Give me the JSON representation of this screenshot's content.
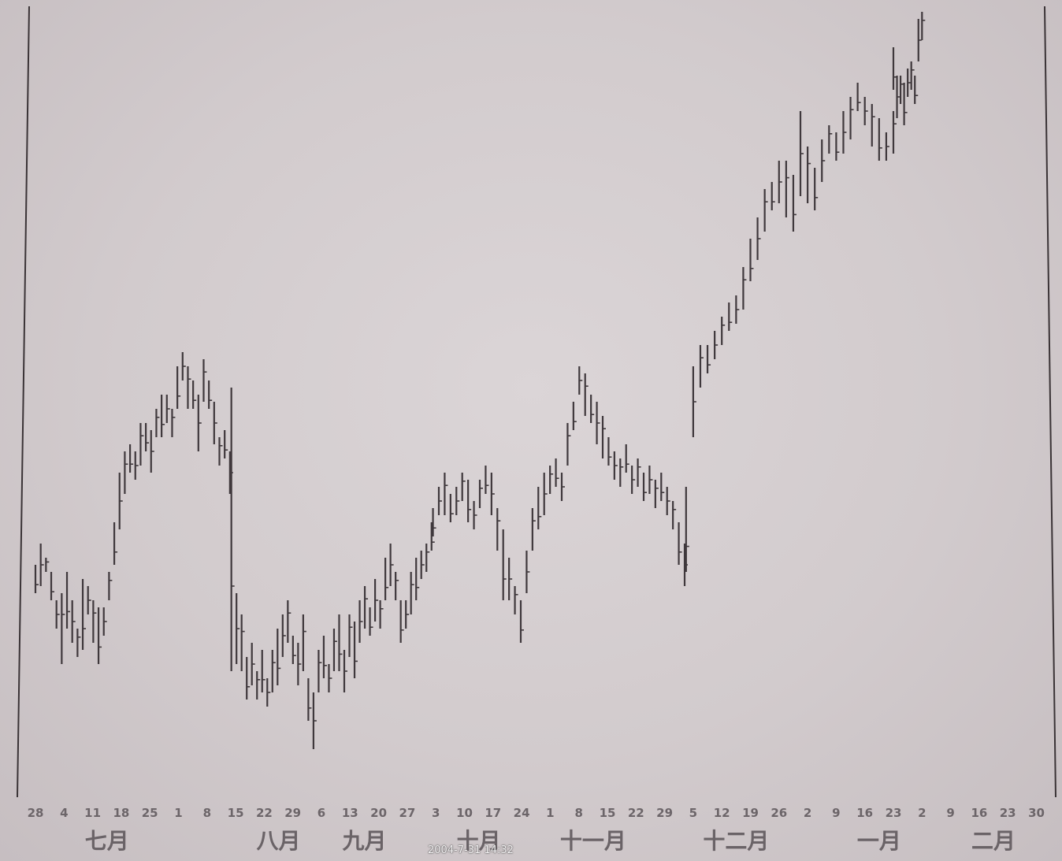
{
  "timestamp": "2004-7-31  14:32",
  "chart_data": {
    "type": "ohlc-bar",
    "title": "",
    "xlabel": "",
    "ylabel": "",
    "grid": false,
    "legend": "none",
    "date_ticks": [
      "28",
      "4",
      "11",
      "18",
      "25",
      "1",
      "8",
      "15",
      "22",
      "29",
      "6",
      "13",
      "20",
      "27",
      "3",
      "10",
      "17",
      "24",
      "1",
      "8",
      "15",
      "22",
      "29",
      "5",
      "12",
      "19",
      "26",
      "2",
      "9",
      "16",
      "23",
      "2",
      "9",
      "16",
      "23",
      "30"
    ],
    "months": [
      "七月",
      "八月",
      "九月",
      "十月",
      "十一月",
      "十二月",
      "一月",
      "二月"
    ],
    "month_tick_index": [
      2.5,
      8.5,
      11.5,
      15.5,
      19.5,
      24.5,
      29.5,
      33.5
    ],
    "price_range": [
      0,
      100
    ],
    "series": [
      {
        "values": [
          [
            25,
            2
          ],
          [
            27,
            3
          ],
          [
            27,
            1
          ],
          [
            24,
            2
          ],
          [
            20,
            2
          ],
          [
            18,
            5
          ],
          [
            22,
            4
          ],
          [
            19,
            3
          ],
          [
            16,
            2
          ],
          [
            20,
            5
          ],
          [
            22,
            2
          ],
          [
            19,
            3
          ],
          [
            17,
            4
          ],
          [
            19,
            2
          ],
          [
            24,
            2
          ],
          [
            30,
            3
          ],
          [
            36,
            4
          ],
          [
            40,
            3
          ],
          [
            42,
            2
          ],
          [
            41,
            2
          ],
          [
            44,
            3
          ],
          [
            45,
            2
          ],
          [
            43,
            3
          ],
          [
            47,
            2
          ],
          [
            48,
            3
          ],
          [
            49,
            2
          ],
          [
            47,
            2
          ],
          [
            52,
            3
          ],
          [
            55,
            2
          ],
          [
            52,
            3
          ],
          [
            51,
            2
          ],
          [
            47,
            4
          ],
          [
            53,
            3
          ],
          [
            51,
            2
          ],
          [
            47,
            3
          ],
          [
            43,
            2
          ],
          [
            44,
            2
          ],
          [
            40,
            3
          ]
        ]
      },
      {
        "values": [
          [
            32,
            20
          ],
          [
            18,
            5
          ],
          [
            16,
            4
          ],
          [
            11,
            3
          ],
          [
            13,
            3
          ],
          [
            10,
            2
          ],
          [
            12,
            3
          ],
          [
            9,
            2
          ],
          [
            12,
            3
          ],
          [
            14,
            4
          ],
          [
            17,
            3
          ],
          [
            19,
            3
          ],
          [
            15,
            2
          ],
          [
            13,
            3
          ],
          [
            16,
            4
          ],
          [
            8,
            3
          ],
          [
            5,
            4
          ],
          [
            12,
            3
          ],
          [
            14,
            3
          ],
          [
            11,
            2
          ],
          [
            15,
            3
          ],
          [
            16,
            4
          ],
          [
            12,
            3
          ],
          [
            17,
            3
          ],
          [
            15,
            4
          ],
          [
            19,
            3
          ],
          [
            21,
            3
          ],
          [
            19,
            2
          ],
          [
            22,
            3
          ],
          [
            20,
            2
          ],
          [
            25,
            3
          ],
          [
            27,
            3
          ],
          [
            24,
            2
          ],
          [
            19,
            3
          ],
          [
            20,
            2
          ],
          [
            23,
            3
          ],
          [
            25,
            3
          ],
          [
            27,
            2
          ],
          [
            28,
            2
          ],
          [
            31,
            2
          ]
        ]
      },
      {
        "values": [
          [
            33,
            2
          ],
          [
            36,
            2
          ],
          [
            37,
            3
          ],
          [
            35,
            2
          ],
          [
            36,
            2
          ],
          [
            38,
            2
          ],
          [
            36,
            3
          ],
          [
            34,
            2
          ],
          [
            37,
            2
          ],
          [
            39,
            2
          ],
          [
            37,
            3
          ],
          [
            32,
            3
          ],
          [
            27,
            5
          ],
          [
            25,
            3
          ],
          [
            22,
            2
          ],
          [
            19,
            3
          ],
          [
            26,
            3
          ],
          [
            32,
            3
          ],
          [
            35,
            3
          ],
          [
            37,
            3
          ],
          [
            39,
            2
          ],
          [
            40,
            2
          ],
          [
            38,
            2
          ],
          [
            44,
            3
          ],
          [
            48,
            2
          ],
          [
            53,
            2
          ],
          [
            51,
            3
          ],
          [
            49,
            2
          ],
          [
            47,
            3
          ],
          [
            45,
            3
          ],
          [
            43,
            2
          ],
          [
            41,
            2
          ],
          [
            40,
            2
          ],
          [
            42,
            2
          ],
          [
            39,
            2
          ],
          [
            40,
            2
          ],
          [
            38,
            2
          ],
          [
            39,
            2
          ],
          [
            37,
            2
          ],
          [
            38,
            2
          ],
          [
            36,
            2
          ],
          [
            34,
            2
          ],
          [
            30,
            3
          ],
          [
            27,
            3
          ]
        ]
      },
      {
        "values": [
          [
            32,
            6
          ],
          [
            50,
            5
          ],
          [
            55,
            3
          ],
          [
            56,
            2
          ],
          [
            58,
            2
          ],
          [
            60,
            2
          ],
          [
            62,
            2
          ],
          [
            63,
            2
          ],
          [
            66,
            3
          ],
          [
            70,
            3
          ],
          [
            73,
            3
          ],
          [
            77,
            3
          ],
          [
            79,
            2
          ],
          [
            81,
            3
          ],
          [
            80,
            4
          ],
          [
            78,
            4
          ],
          [
            85,
            6
          ],
          [
            82,
            4
          ],
          [
            80,
            3
          ],
          [
            84,
            3
          ],
          [
            87,
            2
          ],
          [
            86,
            2
          ],
          [
            88,
            3
          ],
          [
            90,
            3
          ],
          [
            93,
            2
          ],
          [
            91,
            2
          ],
          [
            89,
            3
          ],
          [
            87,
            3
          ],
          [
            86,
            2
          ],
          [
            88,
            3
          ]
        ]
      },
      {
        "values": [
          [
            97,
            3
          ],
          [
            93,
            3
          ],
          [
            94,
            2
          ],
          [
            92,
            3
          ],
          [
            95,
            2
          ],
          [
            96,
            2
          ],
          [
            94,
            2
          ],
          [
            101,
            3
          ],
          [
            103,
            2
          ]
        ]
      }
    ]
  }
}
